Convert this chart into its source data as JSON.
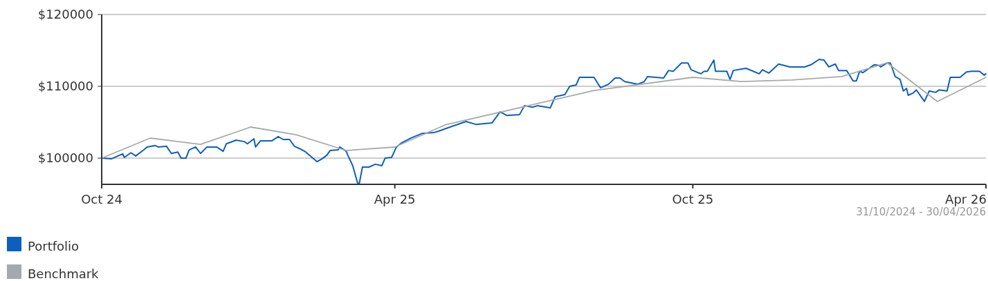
{
  "chart_data": {
    "type": "line",
    "xlim": [
      "2024-10-31",
      "2026-04-30"
    ],
    "xticks": [
      {
        "value": "2024-10-31",
        "label": "Oct 24"
      },
      {
        "value": "2025-04-30",
        "label": "Apr 25"
      },
      {
        "value": "2025-10-31",
        "label": "Oct 25"
      },
      {
        "value": "2026-04-30",
        "label": "Apr 26"
      }
    ],
    "ylim": [
      96350,
      120000
    ],
    "yticks": [
      {
        "value": 100000,
        "label": "$100000"
      },
      {
        "value": 110000,
        "label": "$110000"
      },
      {
        "value": 120000,
        "label": "$120000"
      }
    ],
    "grid": "y",
    "legend": "bottom",
    "line_style": "solid",
    "marker": "none",
    "annotations": [
      "31/10/2024 - 30/04/2026"
    ],
    "series": [
      {
        "name": "Portfolio",
        "color": "#0b5fbf",
        "x": [
          "2024-10-31",
          "2024-11-06",
          "2024-11-09",
          "2024-11-13",
          "2024-11-14",
          "2024-11-18",
          "2024-11-21",
          "2024-11-26",
          "2024-11-28",
          "2024-12-03",
          "2024-12-05",
          "2024-12-10",
          "2024-12-13",
          "2024-12-17",
          "2024-12-19",
          "2024-12-22",
          "2024-12-24",
          "2024-12-28",
          "2024-12-31",
          "2025-01-04",
          "2025-01-10",
          "2025-01-14",
          "2025-01-16",
          "2025-01-22",
          "2025-01-27",
          "2025-01-29",
          "2025-02-02",
          "2025-02-03",
          "2025-02-06",
          "2025-02-13",
          "2025-02-17",
          "2025-02-20",
          "2025-02-24",
          "2025-02-27",
          "2025-03-02",
          "2025-03-06",
          "2025-03-13",
          "2025-03-16",
          "2025-03-19",
          "2025-03-21",
          "2025-03-26",
          "2025-03-27",
          "2025-03-31",
          "2025-04-01",
          "2025-04-04",
          "2025-04-07",
          "2025-04-08",
          "2025-04-10",
          "2025-04-14",
          "2025-04-18",
          "2025-04-22",
          "2025-04-24",
          "2025-04-28",
          "2025-05-01",
          "2025-05-04",
          "2025-05-10",
          "2025-05-17",
          "2025-05-24",
          "2025-05-27",
          "2025-06-04",
          "2025-06-13",
          "2025-06-19",
          "2025-06-29",
          "2025-07-04",
          "2025-07-08",
          "2025-07-16",
          "2025-07-19",
          "2025-07-24",
          "2025-07-27",
          "2025-08-04",
          "2025-08-07",
          "2025-08-13",
          "2025-08-16",
          "2025-08-20",
          "2025-08-22",
          "2025-08-25",
          "2025-08-31",
          "2025-09-04",
          "2025-09-09",
          "2025-09-13",
          "2025-09-16",
          "2025-09-19",
          "2025-09-27",
          "2025-10-01",
          "2025-10-03",
          "2025-10-13",
          "2025-10-16",
          "2025-10-19",
          "2025-10-24",
          "2025-10-28",
          "2025-10-30",
          "2025-11-05",
          "2025-11-07",
          "2025-11-09",
          "2025-11-13",
          "2025-11-14",
          "2025-11-21",
          "2025-11-23",
          "2025-11-25",
          "2025-11-30",
          "2025-12-03",
          "2025-12-11",
          "2025-12-13",
          "2025-12-17",
          "2025-12-23",
          "2025-12-30",
          "2026-01-08",
          "2026-01-12",
          "2026-01-17",
          "2026-01-20",
          "2026-01-23",
          "2026-01-27",
          "2026-01-29",
          "2026-02-03",
          "2026-02-07",
          "2026-02-09",
          "2026-02-11",
          "2026-02-13",
          "2026-02-20",
          "2026-02-23",
          "2026-02-24",
          "2026-02-28",
          "2026-03-02",
          "2026-03-05",
          "2026-03-08",
          "2026-03-10",
          "2026-03-12",
          "2026-03-13",
          "2026-03-16",
          "2026-03-18",
          "2026-03-21",
          "2026-03-23",
          "2026-03-26",
          "2026-03-30",
          "2026-04-01",
          "2026-04-06",
          "2026-04-08",
          "2026-04-14",
          "2026-04-18",
          "2026-04-21",
          "2026-04-26",
          "2026-04-29",
          "2026-04-30"
        ],
        "values": [
          100000,
          99900,
          100200,
          100600,
          100100,
          100750,
          100300,
          101150,
          101550,
          101750,
          101550,
          101650,
          100650,
          100850,
          100000,
          100000,
          101150,
          101550,
          100650,
          101550,
          101550,
          100950,
          102000,
          102500,
          102300,
          102000,
          102700,
          101550,
          102400,
          102400,
          103000,
          102600,
          102600,
          101650,
          101350,
          100850,
          99500,
          99900,
          100400,
          101050,
          101150,
          101550,
          100950,
          100400,
          98950,
          96550,
          96400,
          98750,
          98750,
          99150,
          98950,
          100000,
          100100,
          101550,
          102100,
          102800,
          103450,
          103550,
          103750,
          104400,
          105100,
          104700,
          104900,
          106450,
          105950,
          106050,
          107300,
          107100,
          107300,
          107000,
          108550,
          108850,
          110000,
          110200,
          111250,
          111250,
          111250,
          109800,
          110300,
          111150,
          111150,
          110650,
          110300,
          110650,
          111350,
          111150,
          112200,
          112100,
          113250,
          113250,
          112300,
          111750,
          112100,
          112100,
          113650,
          112100,
          112100,
          110950,
          112200,
          112400,
          112500,
          111750,
          112300,
          111850,
          113100,
          112700,
          112700,
          113000,
          113750,
          113650,
          112700,
          113100,
          112200,
          112200,
          110750,
          110750,
          112100,
          111900,
          113000,
          112900,
          112700,
          113250,
          113250,
          111350,
          110950,
          109350,
          109700,
          108750,
          109050,
          109500,
          108550,
          107900,
          109350,
          109150,
          109500,
          109350,
          111250,
          111250,
          112000,
          112100,
          112100,
          111550,
          111750
        ]
      },
      {
        "name": "Benchmark",
        "color": "#a6a9ab",
        "x": [
          "2024-10-31",
          "2024-11-30",
          "2024-12-31",
          "2025-01-31",
          "2025-02-28",
          "2025-03-31",
          "2025-04-30",
          "2025-05-31",
          "2025-08-31",
          "2025-10-31",
          "2025-11-30",
          "2025-12-31",
          "2026-01-31",
          "2026-02-28",
          "2026-03-31",
          "2026-04-30"
        ],
        "values": [
          100000,
          102790,
          101920,
          104330,
          103270,
          101060,
          101540,
          104620,
          109420,
          111250,
          110670,
          110870,
          111350,
          113270,
          107880,
          111250
        ]
      }
    ]
  }
}
